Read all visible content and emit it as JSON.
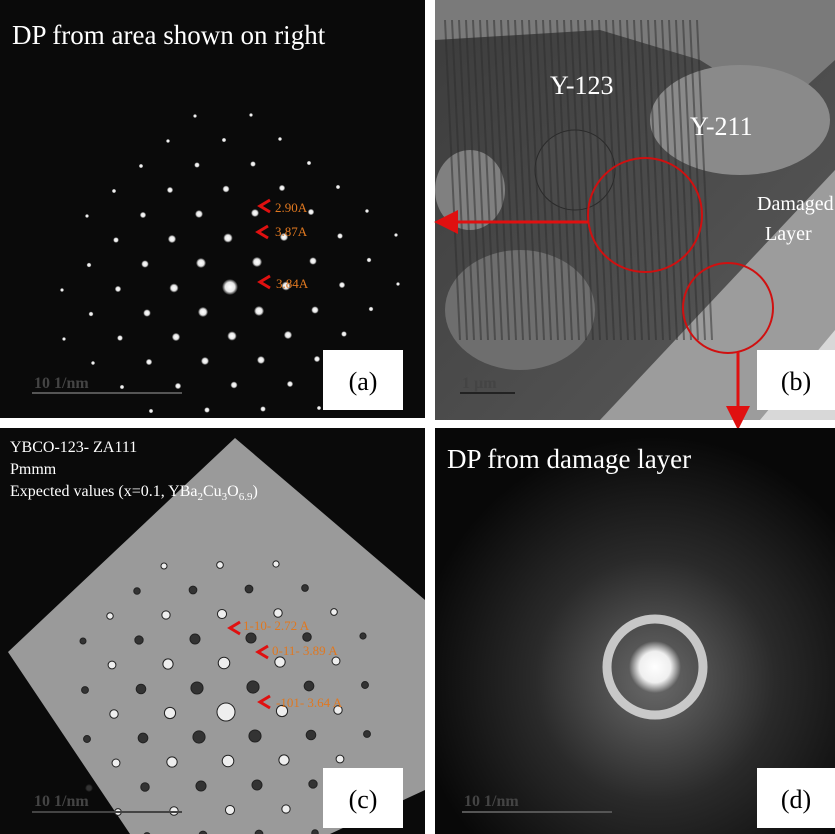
{
  "panels": {
    "a": {
      "title": "DP from area shown on right",
      "annotations": [
        "2.90A",
        "3.87A",
        "3.84A"
      ],
      "scale": "10 1/nm",
      "label": "(a)"
    },
    "b": {
      "grains": [
        "Y-123",
        "Y-211"
      ],
      "layer": [
        "Damaged",
        "Layer"
      ],
      "scale": "1 µm",
      "label": "(b)"
    },
    "c": {
      "lines": [
        "YBCO-123- ZA111",
        "Pmmm"
      ],
      "formula_parts": [
        "Expected values (x=0.1, YBa",
        "2",
        "Cu",
        "3",
        "O",
        "6.9",
        ")"
      ],
      "annotations": [
        "1-10- 2.72 A",
        "0-11- 3.89 A",
        "-101- 3.64 A"
      ],
      "scale": "10 1/nm",
      "label": "(c)"
    },
    "d": {
      "title": "DP from damage layer",
      "scale": "10 1/nm",
      "label": "(d)"
    }
  }
}
